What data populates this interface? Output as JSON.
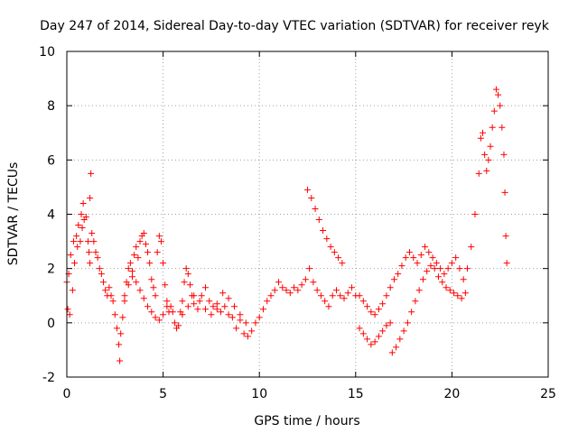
{
  "chart_data": {
    "type": "scatter",
    "title": "Day 247 of 2014, Sidereal Day-to-day VTEC variation (SDTVAR) for receiver reyk",
    "xlabel": "GPS time / hours",
    "ylabel": "SDTVAR / TECUs",
    "xlim": [
      0,
      25
    ],
    "ylim": [
      -2,
      10
    ],
    "xticks": [
      0,
      5,
      10,
      15,
      20,
      25
    ],
    "yticks": [
      -2,
      0,
      2,
      4,
      6,
      8,
      10
    ],
    "x_tick_labels": [
      "0",
      "5",
      "10",
      "15",
      "20",
      "25"
    ],
    "y_tick_labels": [
      "-2",
      "0",
      "2",
      "4",
      "6",
      "8",
      "10"
    ],
    "grid": true,
    "marker": "+",
    "series": [
      {
        "name": "SDTVAR",
        "color": "#ff0000",
        "points": [
          [
            0.0,
            1.5
          ],
          [
            0.05,
            0.5
          ],
          [
            0.1,
            1.8
          ],
          [
            0.15,
            0.3
          ],
          [
            0.2,
            2.5
          ],
          [
            0.3,
            1.2
          ],
          [
            0.35,
            3.0
          ],
          [
            0.4,
            2.2
          ],
          [
            0.5,
            3.2
          ],
          [
            0.55,
            2.8
          ],
          [
            0.6,
            3.6
          ],
          [
            0.7,
            3.0
          ],
          [
            0.75,
            4.0
          ],
          [
            0.8,
            3.5
          ],
          [
            0.85,
            4.4
          ],
          [
            0.9,
            3.8
          ],
          [
            1.0,
            3.9
          ],
          [
            1.1,
            3.0
          ],
          [
            1.15,
            2.6
          ],
          [
            1.2,
            2.2
          ],
          [
            1.25,
            5.5
          ],
          [
            1.2,
            4.6
          ],
          [
            1.3,
            3.3
          ],
          [
            1.4,
            3.0
          ],
          [
            1.5,
            2.6
          ],
          [
            1.6,
            2.4
          ],
          [
            1.7,
            2.0
          ],
          [
            1.8,
            1.8
          ],
          [
            1.9,
            1.5
          ],
          [
            2.0,
            1.2
          ],
          [
            2.1,
            1.0
          ],
          [
            2.2,
            1.3
          ],
          [
            2.3,
            1.0
          ],
          [
            2.4,
            0.8
          ],
          [
            2.5,
            0.3
          ],
          [
            2.6,
            -0.2
          ],
          [
            2.7,
            -0.8
          ],
          [
            2.75,
            -1.4
          ],
          [
            2.8,
            -0.4
          ],
          [
            2.9,
            0.2
          ],
          [
            3.0,
            0.8
          ],
          [
            3.1,
            1.5
          ],
          [
            3.2,
            2.0
          ],
          [
            3.3,
            2.2
          ],
          [
            3.4,
            1.9
          ],
          [
            3.5,
            2.5
          ],
          [
            3.6,
            2.8
          ],
          [
            3.7,
            2.4
          ],
          [
            3.8,
            3.0
          ],
          [
            3.9,
            3.2
          ],
          [
            4.0,
            3.3
          ],
          [
            4.1,
            2.9
          ],
          [
            4.2,
            2.6
          ],
          [
            4.3,
            2.2
          ],
          [
            4.4,
            1.6
          ],
          [
            4.5,
            1.3
          ],
          [
            4.6,
            1.0
          ],
          [
            4.7,
            2.6
          ],
          [
            4.8,
            3.2
          ],
          [
            4.9,
            3.0
          ],
          [
            5.0,
            2.2
          ],
          [
            5.1,
            1.4
          ],
          [
            5.2,
            0.8
          ],
          [
            5.3,
            0.4
          ],
          [
            5.4,
            0.6
          ],
          [
            5.5,
            0.4
          ],
          [
            5.6,
            0.0
          ],
          [
            5.7,
            -0.2
          ],
          [
            5.8,
            -0.1
          ],
          [
            5.9,
            0.4
          ],
          [
            6.0,
            0.8
          ],
          [
            6.1,
            1.5
          ],
          [
            6.2,
            2.0
          ],
          [
            6.3,
            1.8
          ],
          [
            6.4,
            1.4
          ],
          [
            6.5,
            1.0
          ],
          [
            6.6,
            0.7
          ],
          [
            6.8,
            0.5
          ],
          [
            7.0,
            1.0
          ],
          [
            7.2,
            1.3
          ],
          [
            7.4,
            0.8
          ],
          [
            7.6,
            0.6
          ],
          [
            7.8,
            0.5
          ],
          [
            8.0,
            0.4
          ],
          [
            8.2,
            0.6
          ],
          [
            8.4,
            0.3
          ],
          [
            8.6,
            0.2
          ],
          [
            8.8,
            -0.2
          ],
          [
            9.0,
            0.1
          ],
          [
            9.2,
            -0.4
          ],
          [
            9.4,
            -0.5
          ],
          [
            9.6,
            -0.3
          ],
          [
            9.8,
            0.0
          ],
          [
            10.0,
            0.2
          ],
          [
            10.2,
            0.5
          ],
          [
            10.4,
            0.8
          ],
          [
            10.6,
            1.0
          ],
          [
            10.8,
            1.2
          ],
          [
            11.0,
            1.5
          ],
          [
            11.2,
            1.3
          ],
          [
            11.4,
            1.2
          ],
          [
            11.6,
            1.1
          ],
          [
            11.8,
            1.3
          ],
          [
            12.0,
            1.2
          ],
          [
            12.2,
            1.4
          ],
          [
            12.4,
            1.6
          ],
          [
            12.6,
            2.0
          ],
          [
            12.8,
            1.5
          ],
          [
            13.0,
            1.2
          ],
          [
            13.2,
            1.0
          ],
          [
            13.4,
            0.8
          ],
          [
            13.6,
            0.6
          ],
          [
            13.8,
            1.0
          ],
          [
            14.0,
            1.2
          ],
          [
            14.2,
            1.0
          ],
          [
            14.4,
            0.9
          ],
          [
            14.6,
            1.1
          ],
          [
            14.8,
            1.3
          ],
          [
            15.0,
            1.0
          ],
          [
            15.2,
            1.0
          ],
          [
            15.4,
            0.8
          ],
          [
            15.6,
            0.6
          ],
          [
            15.8,
            0.4
          ],
          [
            16.0,
            0.3
          ],
          [
            16.2,
            0.5
          ],
          [
            16.4,
            0.7
          ],
          [
            16.6,
            1.0
          ],
          [
            16.8,
            1.3
          ],
          [
            17.0,
            1.6
          ],
          [
            17.2,
            1.8
          ],
          [
            17.4,
            2.1
          ],
          [
            17.6,
            2.4
          ],
          [
            17.8,
            2.6
          ],
          [
            18.0,
            2.4
          ],
          [
            18.2,
            2.2
          ],
          [
            18.4,
            2.5
          ],
          [
            18.6,
            2.8
          ],
          [
            18.8,
            2.6
          ],
          [
            19.0,
            2.4
          ],
          [
            19.2,
            2.2
          ],
          [
            19.4,
            2.0
          ],
          [
            19.6,
            1.8
          ],
          [
            19.8,
            2.0
          ],
          [
            20.0,
            2.2
          ],
          [
            20.2,
            2.4
          ],
          [
            20.4,
            2.0
          ],
          [
            20.6,
            1.6
          ],
          [
            20.8,
            2.0
          ],
          [
            21.0,
            2.8
          ],
          [
            21.2,
            4.0
          ],
          [
            21.4,
            5.5
          ],
          [
            21.5,
            6.8
          ],
          [
            21.6,
            7.0
          ],
          [
            21.7,
            6.2
          ],
          [
            21.8,
            5.6
          ],
          [
            21.9,
            6.0
          ],
          [
            22.0,
            6.5
          ],
          [
            22.1,
            7.2
          ],
          [
            22.2,
            7.8
          ],
          [
            22.3,
            8.6
          ],
          [
            22.4,
            8.4
          ],
          [
            22.5,
            8.0
          ],
          [
            22.6,
            7.2
          ],
          [
            22.7,
            6.2
          ],
          [
            22.75,
            4.8
          ],
          [
            22.8,
            3.2
          ],
          [
            22.85,
            2.2
          ],
          [
            12.5,
            4.9
          ],
          [
            12.7,
            4.6
          ],
          [
            12.9,
            4.2
          ],
          [
            13.1,
            3.8
          ],
          [
            13.3,
            3.4
          ],
          [
            13.5,
            3.1
          ],
          [
            13.7,
            2.8
          ],
          [
            13.9,
            2.6
          ],
          [
            14.1,
            2.4
          ],
          [
            14.3,
            2.2
          ],
          [
            15.2,
            -0.2
          ],
          [
            15.4,
            -0.4
          ],
          [
            15.6,
            -0.6
          ],
          [
            15.8,
            -0.8
          ],
          [
            16.0,
            -0.7
          ],
          [
            16.2,
            -0.5
          ],
          [
            16.4,
            -0.3
          ],
          [
            16.6,
            -0.1
          ],
          [
            16.8,
            0.0
          ],
          [
            16.9,
            -1.1
          ],
          [
            17.1,
            -0.9
          ],
          [
            17.3,
            -0.6
          ],
          [
            17.5,
            -0.3
          ],
          [
            17.7,
            0.0
          ],
          [
            17.9,
            0.4
          ],
          [
            18.1,
            0.8
          ],
          [
            18.3,
            1.2
          ],
          [
            18.5,
            1.6
          ],
          [
            18.7,
            1.9
          ],
          [
            18.9,
            2.1
          ],
          [
            19.1,
            2.0
          ],
          [
            19.3,
            1.7
          ],
          [
            19.5,
            1.5
          ],
          [
            19.7,
            1.3
          ],
          [
            19.9,
            1.2
          ],
          [
            20.1,
            1.1
          ],
          [
            20.3,
            1.0
          ],
          [
            20.5,
            0.9
          ],
          [
            20.7,
            1.1
          ],
          [
            6.0,
            0.3
          ],
          [
            6.3,
            0.6
          ],
          [
            6.6,
            1.0
          ],
          [
            6.9,
            0.8
          ],
          [
            7.2,
            0.5
          ],
          [
            7.5,
            0.3
          ],
          [
            7.8,
            0.7
          ],
          [
            8.1,
            1.1
          ],
          [
            8.4,
            0.9
          ],
          [
            8.7,
            0.6
          ],
          [
            9.0,
            0.3
          ],
          [
            9.3,
            0.0
          ],
          [
            3.0,
            1.0
          ],
          [
            3.2,
            1.4
          ],
          [
            3.4,
            1.7
          ],
          [
            3.6,
            1.5
          ],
          [
            3.8,
            1.2
          ],
          [
            4.0,
            0.9
          ],
          [
            4.2,
            0.6
          ],
          [
            4.4,
            0.4
          ],
          [
            4.6,
            0.2
          ],
          [
            4.8,
            0.1
          ],
          [
            5.0,
            0.3
          ],
          [
            5.2,
            0.6
          ]
        ]
      }
    ]
  }
}
